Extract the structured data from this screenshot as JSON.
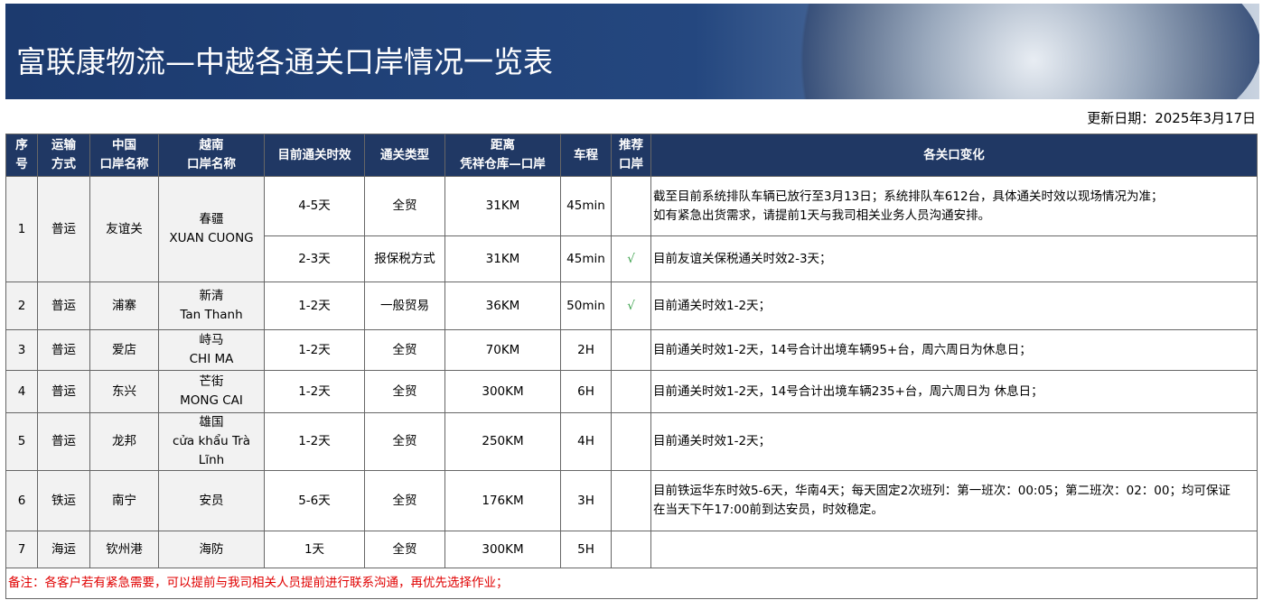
{
  "header": {
    "title": "富联康物流—中越各通关口岸情况一览表",
    "update_date": "更新日期：2025年3月17日"
  },
  "table": {
    "columns": [
      [
        "序",
        "号"
      ],
      [
        "运输",
        "方式"
      ],
      [
        "中国",
        "口岸名称"
      ],
      [
        "越南",
        "口岸名称"
      ],
      [
        "目前通关时效"
      ],
      [
        "通关类型"
      ],
      [
        "距离",
        "凭祥仓库—口岸"
      ],
      [
        "车程"
      ],
      [
        "推荐",
        "口岸"
      ],
      [
        "各关口变化"
      ]
    ],
    "rows": [
      {
        "no": "1",
        "transport": "普运",
        "cn_port": "友谊关",
        "vn_port": [
          "春疆",
          "XUAN CUONG"
        ],
        "lanes": [
          {
            "time": "4-5天",
            "type": "全贸",
            "distance": "31KM",
            "duration": "45min",
            "changes": [
              "截至目前系统排队车辆已放行至3月13日；系统排队车612台，具体通关时效以现场情况为准；",
              "如有紧急出货需求，请提前1天与我司相关业务人员沟通安排。"
            ]
          },
          {
            "time": "2-3天",
            "type": "报保税方式",
            "distance": "31KM",
            "duration": "45min",
            "recommended": "√",
            "changes": [
              "目前友谊关保税通关时效2-3天；"
            ]
          }
        ]
      },
      {
        "no": "2",
        "transport": "普运",
        "cn_port": "浦寨",
        "vn_port": [
          "新清",
          "Tan Thanh"
        ],
        "lanes": [
          {
            "time": "1-2天",
            "type": "一般贸易",
            "distance": "36KM",
            "duration": "50min",
            "recommended": "√",
            "changes": [
              "目前通关时效1-2天；"
            ]
          }
        ]
      },
      {
        "no": "3",
        "transport": "普运",
        "cn_port": "爱店",
        "vn_port": [
          "峙马",
          "CHI MA"
        ],
        "lanes": [
          {
            "time": "1-2天",
            "type": "全贸",
            "distance": "70KM",
            "duration": "2H",
            "changes": [
              "目前通关时效1-2天，14号合计出境车辆95+台，周六周日为休息日；"
            ]
          }
        ]
      },
      {
        "no": "4",
        "transport": "普运",
        "cn_port": "东兴",
        "vn_port": [
          "芒街",
          "MONG CAI"
        ],
        "lanes": [
          {
            "time": "1-2天",
            "type": "全贸",
            "distance": "300KM",
            "duration": "6H",
            "changes": [
              "目前通关时效1-2天，14号合计出境车辆235+台，周六周日为 休息日；"
            ]
          }
        ]
      },
      {
        "no": "5",
        "transport": "普运",
        "cn_port": "龙邦",
        "vn_port": [
          "雄国",
          "cửa khẩu Trà Lĩnh"
        ],
        "lanes": [
          {
            "time": "1-2天",
            "type": "全贸",
            "distance": "250KM",
            "duration": "4H",
            "changes": [
              "目前通关时效1-2天；"
            ]
          }
        ]
      },
      {
        "no": "6",
        "transport": "铁运",
        "cn_port": "南宁",
        "vn_port": [
          "安员"
        ],
        "lanes": [
          {
            "time": "5-6天",
            "type": "全贸",
            "distance": "176KM",
            "duration": "3H",
            "changes": [
              "目前铁运华东时效5-6天，华南4天；每天固定2次班列：第一班次：00:05；第二班次：02：00；均可保证",
              "在当天下午17:00前到达安员，时效稳定。"
            ]
          }
        ]
      },
      {
        "no": "7",
        "transport": "海运",
        "cn_port": "钦州港",
        "vn_port": [
          "海防"
        ],
        "lanes": [
          {
            "time": "1天",
            "type": "全贸",
            "distance": "300KM",
            "duration": "5H",
            "changes": []
          }
        ]
      }
    ],
    "note": "备注：各客户若有紧急需要，可以提前与我司相关人员提前进行联系沟通，再优先选择作业；"
  }
}
